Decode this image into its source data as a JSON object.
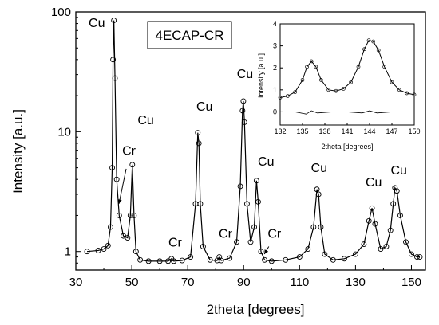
{
  "chart_data": [
    {
      "type": "scatter",
      "xlabel": "2theta [degrees]",
      "ylabel": "Intensity [a.u.]",
      "xlim": [
        30,
        155
      ],
      "ylim": [
        0.7,
        100
      ],
      "yscale": "log",
      "x_ticks": [
        30,
        50,
        70,
        90,
        110,
        130,
        150
      ],
      "x_tick_labels": [
        "30",
        "50",
        "70",
        "90",
        "110",
        "130",
        "150"
      ],
      "y_ticks": [
        1,
        10,
        100
      ],
      "y_tick_labels": [
        "1",
        "10",
        "100"
      ],
      "legend_box": "4ECAP-CR",
      "series": [
        {
          "style": "open circles with fitted line",
          "x": [
            34,
            38,
            40,
            41.5,
            42.4,
            43.0,
            43.3,
            43.6,
            44.0,
            44.6,
            45.5,
            47,
            48.5,
            49.5,
            50.2,
            50.8,
            51.5,
            53,
            56,
            60,
            63,
            64.2,
            65,
            68,
            71,
            72.8,
            73.6,
            74.0,
            74.5,
            75.5,
            78,
            80.5,
            81.3,
            82,
            85,
            87.5,
            88.8,
            89.6,
            89.9,
            90.3,
            91.2,
            92.5,
            93.8,
            94.6,
            95.2,
            96.2,
            97.5,
            100,
            105,
            110,
            113,
            115,
            116.2,
            116.8,
            117.6,
            119,
            122,
            126,
            130,
            133,
            134.8,
            135.9,
            137,
            139,
            141,
            142.5,
            143.5,
            144.1,
            144.8,
            146,
            148,
            150,
            152,
            153
          ],
          "y": [
            1.0,
            1.02,
            1.05,
            1.12,
            1.6,
            5.0,
            40.0,
            85.0,
            28.0,
            4.0,
            2.0,
            1.35,
            1.3,
            2.0,
            5.3,
            2.0,
            1.0,
            0.85,
            0.83,
            0.83,
            0.83,
            0.87,
            0.83,
            0.84,
            0.9,
            2.5,
            9.8,
            8.0,
            2.5,
            1.1,
            0.85,
            0.84,
            0.9,
            0.84,
            0.88,
            1.2,
            3.5,
            15.0,
            18.0,
            12.0,
            2.5,
            1.2,
            1.6,
            3.9,
            2.6,
            1.0,
            0.85,
            0.83,
            0.85,
            0.9,
            1.05,
            1.6,
            3.3,
            3.0,
            1.6,
            0.95,
            0.85,
            0.87,
            0.95,
            1.15,
            1.8,
            2.3,
            1.7,
            1.05,
            1.1,
            1.5,
            2.5,
            3.4,
            3.2,
            2.0,
            1.2,
            0.95,
            0.9,
            0.9
          ]
        }
      ],
      "annotations": [
        {
          "text": "Cu",
          "x": 37.5,
          "y": 75
        },
        {
          "text": "Cu",
          "x": 55,
          "y": 11.5
        },
        {
          "text": "Cr",
          "x": 49,
          "y": 6.4
        },
        {
          "text": "Cr",
          "x": 65.5,
          "y": 1.1
        },
        {
          "text": "Cu",
          "x": 76,
          "y": 15
        },
        {
          "text": "Cr",
          "x": 83.5,
          "y": 1.3
        },
        {
          "text": "Cu",
          "x": 90.5,
          "y": 28
        },
        {
          "text": "Cu",
          "x": 98,
          "y": 5.2
        },
        {
          "text": "Cr",
          "x": 101,
          "y": 1.3
        },
        {
          "text": "Cu",
          "x": 117,
          "y": 4.6
        },
        {
          "text": "Cu",
          "x": 136.5,
          "y": 3.5
        },
        {
          "text": "Cu",
          "x": 145.5,
          "y": 4.4
        }
      ],
      "arrows": [
        {
          "from": [
            48,
            4.9
          ],
          "to": [
            45.4,
            2.5
          ]
        },
        {
          "from": [
            99,
            1.1
          ],
          "to": [
            97.4,
            0.95
          ]
        }
      ]
    },
    {
      "type": "scatter",
      "xlabel": "2theta [degrees]",
      "ylabel": "Intensity [a.u.]",
      "xlim": [
        132,
        150
      ],
      "ylim": [
        -0.6,
        4
      ],
      "x_ticks": [
        132,
        135,
        138,
        141,
        144,
        147,
        150
      ],
      "x_tick_labels": [
        "132",
        "135",
        "138",
        "141",
        "144",
        "147",
        "150"
      ],
      "y_ticks": [
        0,
        1,
        2,
        3,
        4
      ],
      "y_tick_labels": [
        "0",
        "1",
        "2",
        "3",
        "4"
      ],
      "series": [
        {
          "style": "open circles with fitted line",
          "x": [
            132,
            133,
            134,
            135,
            135.6,
            136.2,
            136.8,
            137.5,
            138.5,
            139.5,
            140.5,
            141.5,
            142.5,
            143.3,
            143.9,
            144.5,
            145.2,
            146,
            147,
            148,
            149,
            150
          ],
          "y": [
            0.65,
            0.72,
            0.9,
            1.45,
            2.05,
            2.3,
            2.05,
            1.45,
            1.0,
            0.95,
            1.05,
            1.35,
            2.05,
            2.85,
            3.25,
            3.2,
            2.8,
            2.05,
            1.35,
            1.0,
            0.85,
            0.78
          ]
        },
        {
          "style": "difference curve",
          "x": [
            132,
            134,
            135.5,
            136.2,
            137,
            139,
            141,
            143,
            144,
            145,
            147,
            150
          ],
          "y": [
            0.0,
            0.0,
            -0.1,
            0.05,
            -0.05,
            0.0,
            0.0,
            -0.05,
            0.05,
            -0.05,
            0.0,
            0.0
          ]
        }
      ]
    }
  ]
}
